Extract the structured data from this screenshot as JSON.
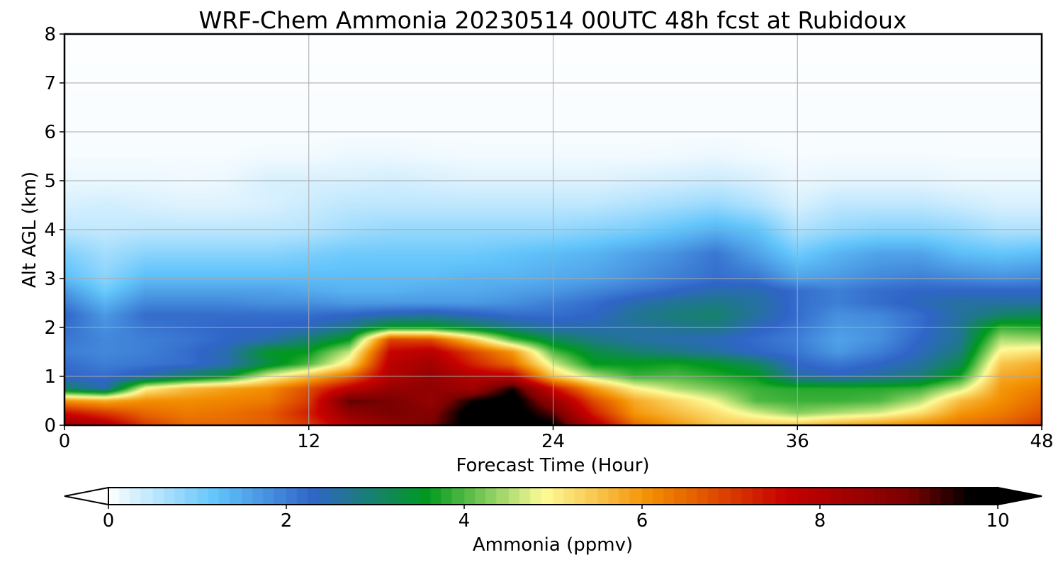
{
  "chart_data": {
    "type": "heatmap",
    "title": "WRF-Chem Ammonia  20230514 00UTC 48h fcst at Rubidoux",
    "xlabel": "Forecast Time (Hour)",
    "ylabel": "Alt AGL (km)",
    "xlim": [
      0,
      48
    ],
    "ylim": [
      0,
      8
    ],
    "x_ticks": [
      0,
      12,
      24,
      36,
      48
    ],
    "y_ticks": [
      0,
      1,
      2,
      3,
      4,
      5,
      6,
      7,
      8
    ],
    "grid": true,
    "x": [
      0,
      2,
      4,
      6,
      8,
      10,
      12,
      14,
      16,
      18,
      20,
      22,
      24,
      26,
      28,
      30,
      32,
      34,
      36,
      38,
      40,
      42,
      44,
      46,
      48
    ],
    "y": [
      0,
      0.25,
      0.5,
      0.75,
      1,
      1.25,
      1.5,
      1.75,
      2,
      2.25,
      2.5,
      2.75,
      3,
      3.5,
      4,
      4.5,
      5,
      5.5,
      6,
      7,
      8
    ],
    "z": [
      [
        8.5,
        8.0,
        7.0,
        6.5,
        6.5,
        6.6,
        7.0,
        8.0,
        8.5,
        9.0,
        10.0,
        10.0,
        9.8,
        8.0,
        6.5,
        6.0,
        5.5,
        5.5,
        5.5,
        5.8,
        6.0,
        6.2,
        6.4,
        6.6,
        7.0
      ],
      [
        7.5,
        7.0,
        6.5,
        6.3,
        6.4,
        6.6,
        7.3,
        8.6,
        9.0,
        8.8,
        10.0,
        10.0,
        9.2,
        7.3,
        6.0,
        5.6,
        5.2,
        4.7,
        4.3,
        4.5,
        4.7,
        5.2,
        6.0,
        6.3,
        6.7
      ],
      [
        6.0,
        5.8,
        6.1,
        6.1,
        6.2,
        6.3,
        7.0,
        9.2,
        9.0,
        8.5,
        9.6,
        10.0,
        8.5,
        6.8,
        5.8,
        5.3,
        4.8,
        4.0,
        3.9,
        3.9,
        4.0,
        4.5,
        5.6,
        6.1,
        6.5
      ],
      [
        3.0,
        2.5,
        5.0,
        5.6,
        5.9,
        6.1,
        6.8,
        7.8,
        8.5,
        8.6,
        8.3,
        9.6,
        7.5,
        6.0,
        5.0,
        4.5,
        4.2,
        3.9,
        3.8,
        3.8,
        3.8,
        3.9,
        4.6,
        6.0,
        6.3
      ],
      [
        2.3,
        2.2,
        2.5,
        3.0,
        3.5,
        4.8,
        5.6,
        6.5,
        8.0,
        8.5,
        8.0,
        7.8,
        5.5,
        4.5,
        3.9,
        4.0,
        3.8,
        3.6,
        2.6,
        2.4,
        2.6,
        2.9,
        3.7,
        5.8,
        6.0
      ],
      [
        2.2,
        2.0,
        2.1,
        2.2,
        2.5,
        3.3,
        4.0,
        5.2,
        7.9,
        8.3,
        7.3,
        6.5,
        4.7,
        3.6,
        3.6,
        3.7,
        3.5,
        3.1,
        2.3,
        2.1,
        2.3,
        2.6,
        3.2,
        5.5,
        5.8
      ],
      [
        2.0,
        1.9,
        2.0,
        2.2,
        2.5,
        3.5,
        3.6,
        4.6,
        7.6,
        7.9,
        6.9,
        6.0,
        4.0,
        3.3,
        3.0,
        2.8,
        2.6,
        2.3,
        2.1,
        1.7,
        2.0,
        2.4,
        2.9,
        5.0,
        5.2
      ],
      [
        2.1,
        1.9,
        2.0,
        2.1,
        2.3,
        2.5,
        3.0,
        3.6,
        6.9,
        6.8,
        5.5,
        4.0,
        3.2,
        2.8,
        2.6,
        2.5,
        2.4,
        2.2,
        2.0,
        1.6,
        1.8,
        2.3,
        2.7,
        4.5,
        4.4
      ],
      [
        2.2,
        1.8,
        2.1,
        2.2,
        2.3,
        2.3,
        2.4,
        2.8,
        3.6,
        3.6,
        3.2,
        2.8,
        2.5,
        2.5,
        2.6,
        2.7,
        2.8,
        2.4,
        2.1,
        1.7,
        1.8,
        2.2,
        2.7,
        3.9,
        3.8
      ],
      [
        2.3,
        1.7,
        2.2,
        2.2,
        2.2,
        2.2,
        2.2,
        2.3,
        2.5,
        2.6,
        2.4,
        2.2,
        2.2,
        2.3,
        2.7,
        2.9,
        3.0,
        2.6,
        2.2,
        1.8,
        1.9,
        2.2,
        2.6,
        3.0,
        3.2
      ],
      [
        2.0,
        1.4,
        1.9,
        1.9,
        1.9,
        1.8,
        1.8,
        1.7,
        1.7,
        1.7,
        1.7,
        1.8,
        2.0,
        2.2,
        2.5,
        2.7,
        2.8,
        2.6,
        2.2,
        2.0,
        2.2,
        2.4,
        2.6,
        2.6,
        2.6
      ],
      [
        1.7,
        1.1,
        1.6,
        1.6,
        1.6,
        1.6,
        1.5,
        1.4,
        1.4,
        1.5,
        1.5,
        1.6,
        1.7,
        1.9,
        2.1,
        2.3,
        2.5,
        2.5,
        2.2,
        2.0,
        2.2,
        2.3,
        2.3,
        2.3,
        2.3
      ],
      [
        1.3,
        0.9,
        1.3,
        1.3,
        1.3,
        1.3,
        1.3,
        1.3,
        1.3,
        1.3,
        1.4,
        1.4,
        1.5,
        1.6,
        1.8,
        2.0,
        2.2,
        2.1,
        1.6,
        1.7,
        1.9,
        2.0,
        1.9,
        1.8,
        1.9
      ],
      [
        1.0,
        0.7,
        0.9,
        0.9,
        0.9,
        0.9,
        1.0,
        1.1,
        1.1,
        1.1,
        1.1,
        1.2,
        1.3,
        1.4,
        1.6,
        1.8,
        2.1,
        1.6,
        1.1,
        1.4,
        1.6,
        1.6,
        1.3,
        1.2,
        1.3
      ],
      [
        0.5,
        0.45,
        0.5,
        0.5,
        0.5,
        0.5,
        0.55,
        0.7,
        0.8,
        0.8,
        0.8,
        0.8,
        0.8,
        0.9,
        1.0,
        1.2,
        1.4,
        1.2,
        0.6,
        0.8,
        0.9,
        0.9,
        0.8,
        0.6,
        0.6
      ],
      [
        0.3,
        0.35,
        0.3,
        0.25,
        0.25,
        0.3,
        0.4,
        0.5,
        0.5,
        0.5,
        0.5,
        0.5,
        0.5,
        0.5,
        0.6,
        0.7,
        0.8,
        0.6,
        0.3,
        0.5,
        0.5,
        0.5,
        0.4,
        0.3,
        0.3
      ],
      [
        0.15,
        0.15,
        0.15,
        0.12,
        0.15,
        0.3,
        0.3,
        0.3,
        0.35,
        0.3,
        0.25,
        0.25,
        0.25,
        0.25,
        0.3,
        0.35,
        0.4,
        0.3,
        0.15,
        0.2,
        0.2,
        0.2,
        0.15,
        0.15,
        0.15
      ],
      [
        0.07,
        0.07,
        0.07,
        0.07,
        0.07,
        0.1,
        0.1,
        0.15,
        0.15,
        0.12,
        0.1,
        0.1,
        0.1,
        0.1,
        0.1,
        0.12,
        0.15,
        0.1,
        0.07,
        0.08,
        0.08,
        0.08,
        0.07,
        0.07,
        0.07
      ],
      [
        0.05,
        0.05,
        0.05,
        0.05,
        0.05,
        0.05,
        0.05,
        0.05,
        0.05,
        0.05,
        0.05,
        0.05,
        0.05,
        0.05,
        0.05,
        0.05,
        0.05,
        0.05,
        0.05,
        0.05,
        0.05,
        0.05,
        0.05,
        0.05,
        0.05
      ],
      [
        0.03,
        0.03,
        0.03,
        0.03,
        0.03,
        0.03,
        0.03,
        0.03,
        0.03,
        0.03,
        0.03,
        0.03,
        0.03,
        0.03,
        0.03,
        0.03,
        0.03,
        0.03,
        0.03,
        0.03,
        0.03,
        0.03,
        0.03,
        0.03,
        0.03
      ],
      [
        0.02,
        0.02,
        0.02,
        0.02,
        0.02,
        0.02,
        0.02,
        0.02,
        0.02,
        0.02,
        0.02,
        0.02,
        0.02,
        0.02,
        0.02,
        0.02,
        0.02,
        0.02,
        0.02,
        0.02,
        0.02,
        0.02,
        0.02,
        0.02,
        0.02
      ]
    ],
    "colorbar": {
      "label": "Ammonia  (ppmv)",
      "range": [
        0,
        10
      ],
      "ticks": [
        0,
        2,
        4,
        6,
        8,
        10
      ],
      "extend": "both",
      "placement": "bottom",
      "stops": [
        {
          "value": 0,
          "color": "#ffffff"
        },
        {
          "value": 1.2,
          "color": "#62c5fb"
        },
        {
          "value": 2.3,
          "color": "#3065c8"
        },
        {
          "value": 3.6,
          "color": "#009a1c"
        },
        {
          "value": 4.9,
          "color": "#fefb98"
        },
        {
          "value": 6.1,
          "color": "#f38e00"
        },
        {
          "value": 7.6,
          "color": "#c80200"
        },
        {
          "value": 9.0,
          "color": "#7b0101"
        },
        {
          "value": 9.7,
          "color": "#000000"
        }
      ]
    }
  }
}
